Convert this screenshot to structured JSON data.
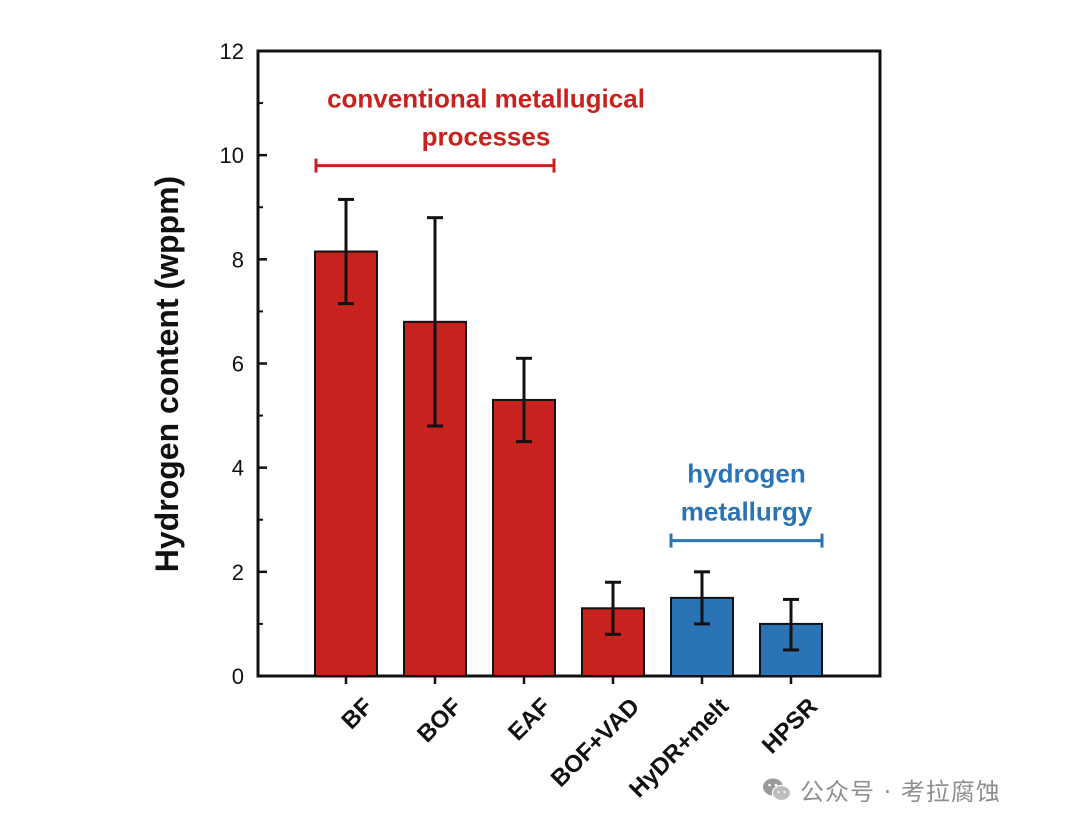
{
  "chart_data": {
    "type": "bar",
    "ylabel": "Hydrogen content (wppm)",
    "xlabel": "",
    "ylim": [
      0,
      12
    ],
    "yticks": [
      0,
      2,
      4,
      6,
      8,
      10,
      12
    ],
    "categories": [
      "BF",
      "BOF",
      "EAF",
      "BOF+VAD",
      "HyDR+melt",
      "HPSR"
    ],
    "values": [
      8.15,
      6.8,
      5.3,
      1.3,
      1.5,
      1.0
    ],
    "error_low": [
      7.15,
      4.8,
      4.5,
      0.8,
      1.0,
      0.5
    ],
    "error_high": [
      9.15,
      8.8,
      6.1,
      1.8,
      2.0,
      1.47
    ],
    "colors": [
      "#c8221e",
      "#c8221e",
      "#c8221e",
      "#c8221e",
      "#2a73b4",
      "#2a73b4"
    ],
    "groups": [
      {
        "label_lines": [
          "conventional metallugical",
          "processes"
        ],
        "from": "BF",
        "to": "EAF",
        "bracket_y": 9.8,
        "color": "#c8221e"
      },
      {
        "label_lines": [
          "hydrogen",
          "metallurgy"
        ],
        "from": "HyDR+melt",
        "to": "HPSR",
        "bracket_y": 2.6,
        "color": "#2a73b4"
      }
    ],
    "grid": false
  },
  "watermark": {
    "icon": "wechat-icon",
    "text": "公众号 · 考拉腐蚀"
  }
}
